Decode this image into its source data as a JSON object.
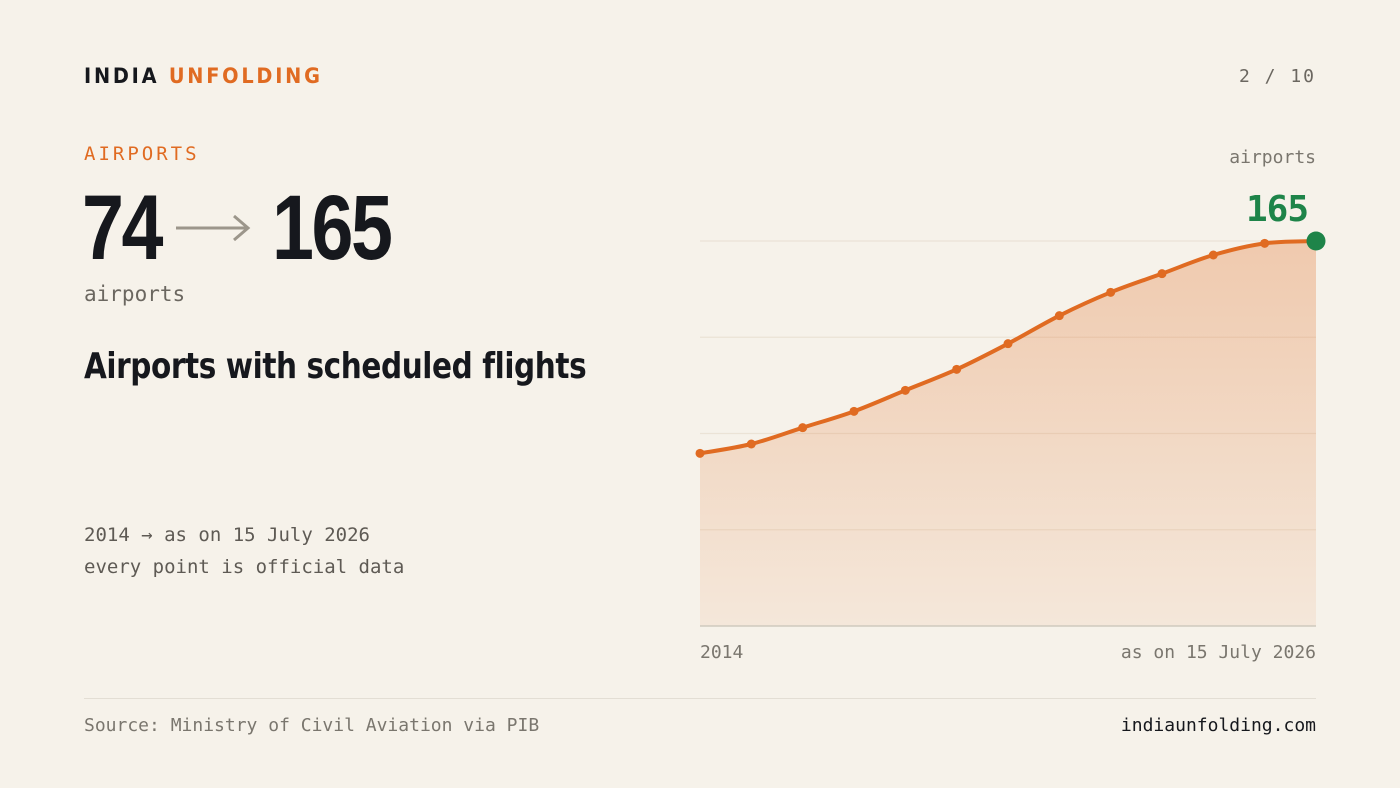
{
  "brand": {
    "part1": "INDIA",
    "part2": "UNFOLDING"
  },
  "page_counter": "2 / 10",
  "kicker": "AIRPORTS",
  "headline_numbers": {
    "from": "74",
    "to": "165",
    "unit": "airports"
  },
  "headline": "Airports with scheduled flights",
  "note": {
    "line1": "2014 → as on 15 July 2026",
    "line2": "every point is official data"
  },
  "footer": {
    "source": "Source: Ministry of Civil Aviation via PIB",
    "site": "indiaunfolding.com"
  },
  "colors": {
    "accent": "#e06b22",
    "highlight": "#1e8449",
    "ink": "#16181d",
    "background": "#f6f2ea"
  },
  "chart_data": {
    "type": "area",
    "series": [
      {
        "values": [
          74,
          78,
          85,
          92,
          101,
          110,
          121,
          133,
          143,
          151,
          159,
          164,
          165
        ]
      }
    ],
    "x_labels": {
      "start": "2014",
      "end": "as on 15 July 2026"
    },
    "ylabel": "airports",
    "end_label": "165",
    "ylim": [
      0,
      165
    ],
    "grid": true,
    "markers": true
  }
}
